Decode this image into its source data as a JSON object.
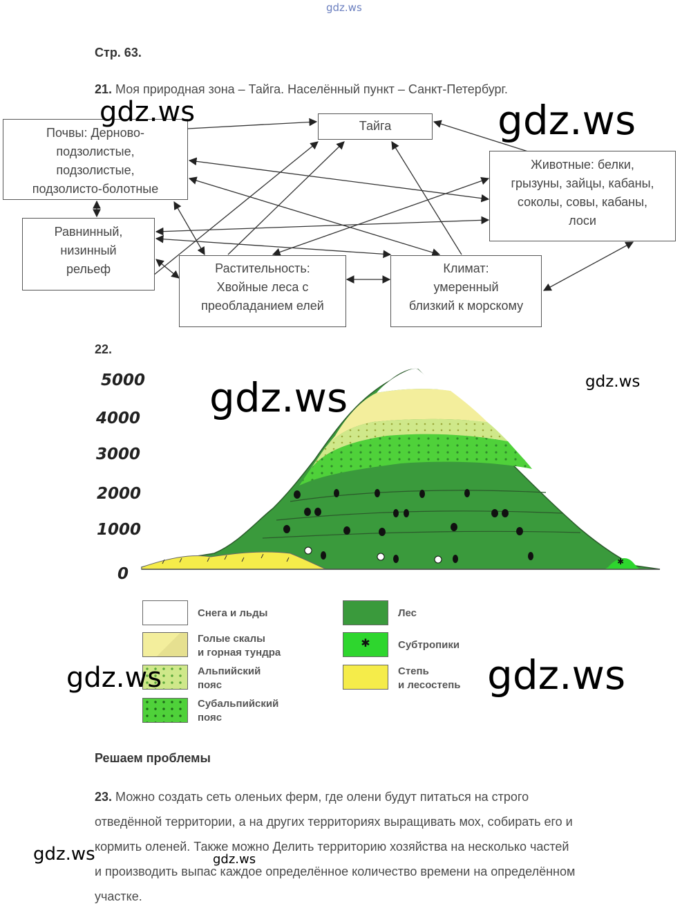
{
  "watermark": "gdz.ws",
  "page_label": "Стр. 63.",
  "task21": {
    "number": "21.",
    "text": "Моя природная зона – Тайга. Населённый пункт – Санкт-Петербург.",
    "boxes": {
      "soils": [
        "Почвы: Дерново-",
        "подзолистые,",
        "подзолистые,",
        "подзолисто-болотные"
      ],
      "taiga": [
        "Тайга"
      ],
      "animals": [
        "Животные: белки,",
        "грызуны, зайцы, кабаны,",
        "соколы, совы, кабаны,",
        "лоси"
      ],
      "relief": [
        "Равнинный,",
        "низинный",
        "рельеф"
      ],
      "vegetation": [
        "Растительность:",
        "Хвойные леса с",
        "преобладанием елей"
      ],
      "climate": [
        "Климат:",
        "умеренный",
        "близкий к морскому"
      ]
    }
  },
  "task22": {
    "number": "22.",
    "elevations": [
      "5000",
      "4000",
      "3000",
      "2000",
      "1000",
      "0"
    ],
    "legend": [
      {
        "label": [
          "Снега и льды"
        ],
        "color": "#ffffff"
      },
      {
        "label": [
          "Голые скалы",
          "и горная тундра"
        ],
        "color": "#f3ee9c"
      },
      {
        "label": [
          "Альпийский",
          "пояс"
        ],
        "color": "#cfe88a"
      },
      {
        "label": [
          "Субальпийский",
          "пояс"
        ],
        "color": "#4fd13a"
      },
      {
        "label": [
          "Лес"
        ],
        "color": "#3a9a3c"
      },
      {
        "label": [
          "Субтропики"
        ],
        "color": "#2ed62e"
      },
      {
        "label": [
          "Степь",
          "и лесостепь"
        ],
        "color": "#f5ec4a"
      }
    ]
  },
  "problems": {
    "heading": "Решаем проблемы",
    "number": "23.",
    "lines": [
      "Можно создать сеть оленьих ферм, где олени будут питаться на строго",
      "отведённой территории, а на других территориях выращивать мох, собирать его и",
      "кормить оленей. Также можно Делить территорию хозяйства на несколько частей",
      "и производить выпас каждое определённое количество времени на определённом",
      "участке."
    ]
  }
}
